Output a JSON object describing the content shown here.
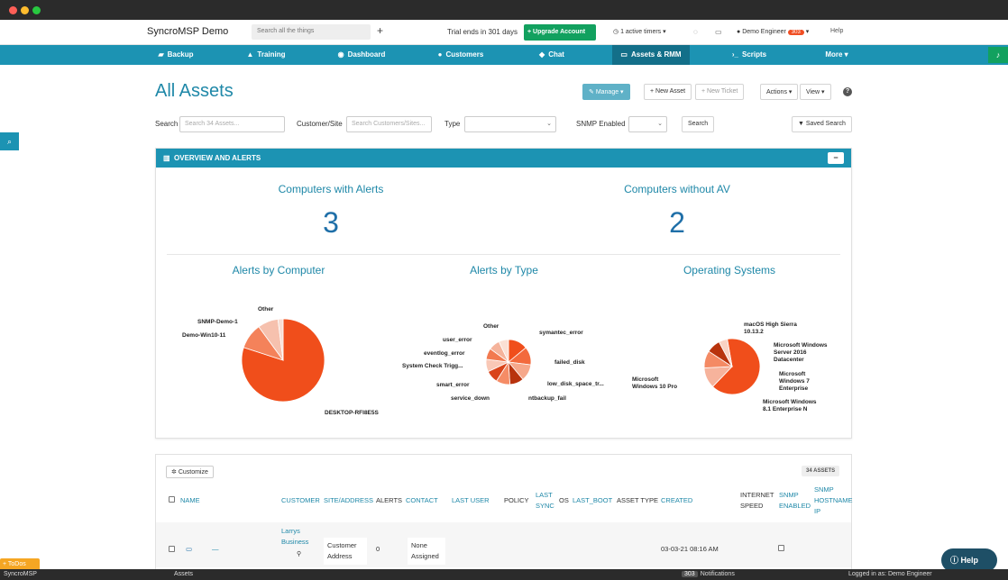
{
  "window": {
    "traffic_lights": [
      "#ff5f57",
      "#febc2e",
      "#28c840"
    ]
  },
  "topbar": {
    "brand": "SyncroMSP Demo",
    "search_placeholder": "Search all the things",
    "plus": "+",
    "trial": "Trial ends in 301 days",
    "upgrade": "Upgrade Account",
    "timers": "1 active timers",
    "user": "Demo Engineer",
    "user_badge": "303",
    "help": "Help"
  },
  "nav": {
    "items": [
      {
        "label": "Backup",
        "icon": "car-icon"
      },
      {
        "label": "Training",
        "icon": "graduation-cap-icon"
      },
      {
        "label": "Dashboard",
        "icon": "dashboard-icon"
      },
      {
        "label": "Customers",
        "icon": "user-icon"
      },
      {
        "label": "Chat",
        "icon": "chat-icon"
      },
      {
        "label": "Assets & RMM",
        "icon": "monitor-icon"
      },
      {
        "label": "Scripts",
        "icon": "terminal-icon"
      },
      {
        "label": "More",
        "icon": "caret-down-icon"
      }
    ],
    "active": "Assets & RMM"
  },
  "page": {
    "title": "All Assets",
    "manage": "Manage",
    "new_asset": "New Asset",
    "new_ticket": "New Ticket",
    "actions": "Actions",
    "view": "View"
  },
  "filters": {
    "search_label": "Search",
    "search_placeholder": "Search 34 Assets...",
    "customer_label": "Customer/Site",
    "customer_placeholder": "Search Customers/Sites...",
    "type_label": "Type",
    "snmp_label": "SNMP Enabled",
    "search_button": "Search",
    "saved_search": "Saved Search"
  },
  "overview": {
    "header": "OVERVIEW AND ALERTS",
    "computers_with_alerts_label": "Computers with Alerts",
    "computers_with_alerts": "3",
    "computers_without_av_label": "Computers without AV",
    "computers_without_av": "2",
    "alerts_by_computer": "Alerts by Computer",
    "alerts_by_type": "Alerts by Type",
    "operating_systems": "Operating Systems"
  },
  "chart_data": [
    {
      "type": "pie",
      "title": "Alerts by Computer",
      "labels": [
        "DESKTOP-RFI8E5S",
        "Demo-Win10-11",
        "SNMP-Demo-1",
        "Other"
      ],
      "values": [
        80,
        10,
        8,
        2
      ],
      "colors": [
        "#f04e1b",
        "#f4825a",
        "#f6c1ae",
        "#f8ddd2"
      ]
    },
    {
      "type": "pie",
      "title": "Alerts by Type",
      "labels": [
        "symantec_error",
        "failed_disk",
        "low_disk_space_tr...",
        "ntbackup_fail",
        "service_down",
        "smart_error",
        "System Check Trigg...",
        "eventlog_error",
        "user_error",
        "Other"
      ],
      "values": [
        14,
        13,
        12,
        10,
        10,
        9,
        9,
        8,
        8,
        7
      ],
      "colors": [
        "#f04e1b",
        "#f36a3d",
        "#f6a88b",
        "#b8330d",
        "#f58c66",
        "#d9441a",
        "#f9c8b6",
        "#f27a50",
        "#f5b39b",
        "#fbe0d5"
      ]
    },
    {
      "type": "pie",
      "title": "Operating Systems",
      "labels": [
        "Microsoft Windows 10 Pro",
        "Microsoft Windows 8.1 Enterprise N",
        "Microsoft Windows 7 Enterprise",
        "Microsoft Windows Server 2016 Datacenter",
        "macOS High Sierra 10.13.2"
      ],
      "values": [
        65,
        12,
        10,
        8,
        5
      ],
      "colors": [
        "#f04e1b",
        "#f6b39c",
        "#f48a64",
        "#b8330d",
        "#f9d2c3"
      ]
    }
  ],
  "table": {
    "customize": "Customize",
    "count": "34 ASSETS",
    "headers": {
      "name": "NAME",
      "customer": "CUSTOMER",
      "site": "SITE/ADDRESS",
      "alerts": "ALERTS",
      "contact": "CONTACT",
      "last_user": "LAST USER",
      "policy": "POLICY",
      "last_sync": "LAST SYNC",
      "os": "OS",
      "last_boot": "LAST_BOOT",
      "asset_type": "ASSET TYPE",
      "created": "CREATED",
      "internet_speed": "INTERNET SPEED",
      "snmp_enabled": "SNMP ENABLED",
      "snmp_hostname": "SNMP HOSTNAME IP"
    },
    "rows": [
      {
        "name": "—",
        "customer": "Larrys Business",
        "site": "Customer Address",
        "alerts": "0",
        "contact": "None Assigned",
        "created": "03-03-21 08:16 AM"
      }
    ]
  },
  "footer": {
    "todos": "+ ToDos",
    "help": "Help",
    "app": "SyncroMSP",
    "section": "Assets",
    "notif_count": "303",
    "notifications": "Notifications",
    "logged_in": "Logged in as: Demo Engineer"
  }
}
